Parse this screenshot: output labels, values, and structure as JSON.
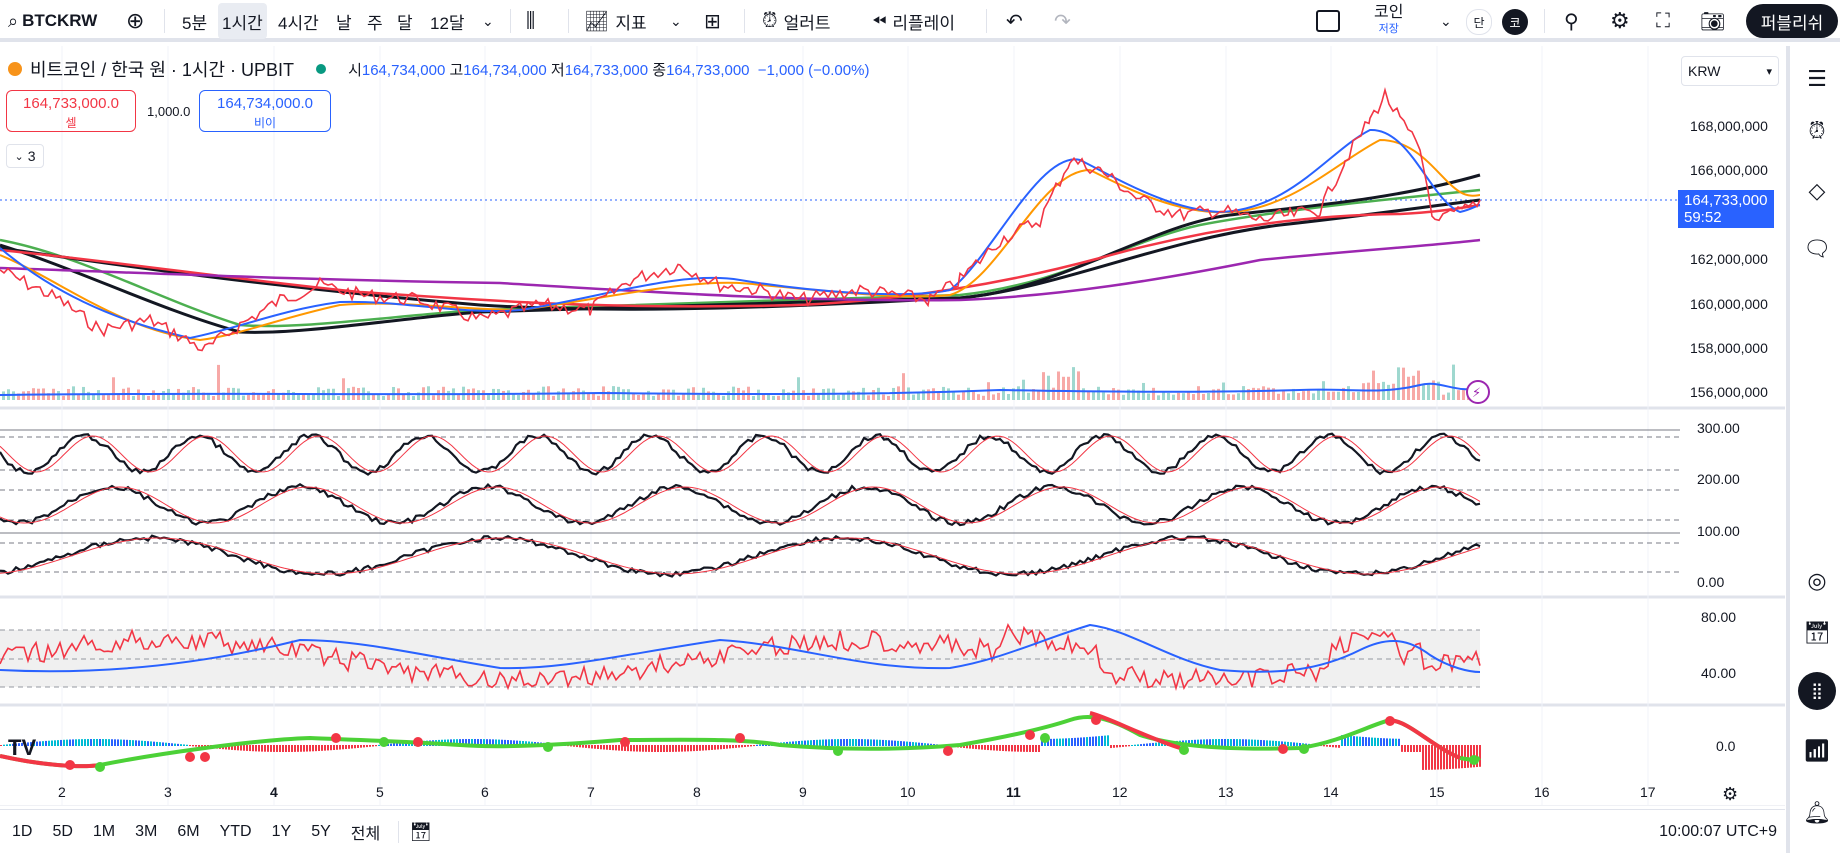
{
  "toolbar": {
    "symbol": "BTCKRW",
    "intervals": [
      "5분",
      "1시간",
      "4시간",
      "날",
      "주",
      "달",
      "12달"
    ],
    "active_interval": "1시간",
    "indicators_label": "지표",
    "alerts_label": "얼러트",
    "replay_label": "리플레이",
    "coin_label": "코인",
    "coin_sub": "저장",
    "toggle_left": "단",
    "toggle_right": "코",
    "publish_label": "퍼블리쉬"
  },
  "legend": {
    "title": "비트코인 / 한국 원 · 1시간 · UPBIT",
    "open_label": "시",
    "open": "164,734,000",
    "high_label": "고",
    "high": "164,734,000",
    "low_label": "저",
    "low": "164,733,000",
    "close_label": "종",
    "close": "164,733,000",
    "change": "−1,000 (−0.00%)"
  },
  "trade": {
    "sell_price": "164,733,000.0",
    "sell_label": "셀",
    "spread": "1,000.0",
    "buy_price": "164,734,000.0",
    "buy_label": "비이"
  },
  "collapse_count": "3",
  "currency": "KRW",
  "price_tag": {
    "price": "164,733,000",
    "countdown": "59:52"
  },
  "price_axis": [
    "168,000,000",
    "166,000,000",
    "162,000,000",
    "160,000,000",
    "158,000,000",
    "156,000,000"
  ],
  "osc_axis": [
    "300.00",
    "200.00",
    "100.00",
    "0.00"
  ],
  "rsi_axis": [
    "80.00",
    "40.00"
  ],
  "macd_axis": [
    "0.0"
  ],
  "time_axis": [
    "2",
    "3",
    "4",
    "5",
    "6",
    "7",
    "8",
    "9",
    "10",
    "11",
    "12",
    "13",
    "14",
    "15",
    "16",
    "17"
  ],
  "bottom": {
    "periods": [
      "1D",
      "5D",
      "1M",
      "3M",
      "6M",
      "YTD",
      "1Y",
      "5Y",
      "전체"
    ],
    "clock": "10:00:07 UTC+9"
  },
  "logo": "TV",
  "colors": {
    "accent": "#2962ff",
    "down": "#f23645",
    "up": "#089981",
    "ma_orange": "#ff9800",
    "ma_green": "#4caf50",
    "ma_purple": "#9c27b0"
  }
}
